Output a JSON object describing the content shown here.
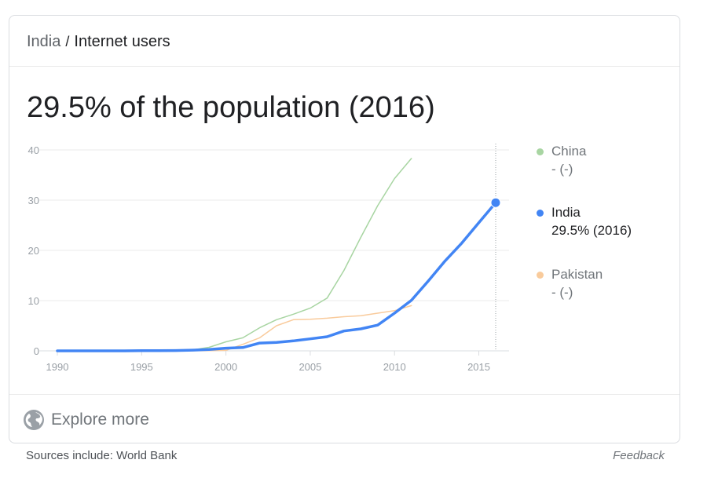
{
  "breadcrumb": {
    "parent": "India",
    "separator": "/",
    "current": "Internet users"
  },
  "headline": "29.5% of the population (2016)",
  "explore_label": "Explore more",
  "footer": {
    "sources": "Sources include: World Bank",
    "feedback": "Feedback"
  },
  "colors": {
    "china": "#a8d5a2",
    "india": "#4285f4",
    "pakistan": "#f9cb9c",
    "grid": "#ebebeb",
    "axis_text": "#9aa0a6"
  },
  "chart_data": {
    "type": "line",
    "title": "29.5% of the population (2016)",
    "xlabel": "",
    "ylabel": "",
    "xlim": [
      1990,
      2016
    ],
    "ylim": [
      0,
      40
    ],
    "x_ticks": [
      1990,
      1995,
      2000,
      2005,
      2010,
      2015
    ],
    "y_ticks": [
      0,
      10,
      20,
      30,
      40
    ],
    "grid": true,
    "legend_position": "right",
    "highlight": {
      "series": "India",
      "x": 2016,
      "y": 29.5
    },
    "series": [
      {
        "name": "China",
        "legend_value": "- (-)",
        "x": [
          1990,
          1991,
          1992,
          1993,
          1994,
          1995,
          1996,
          1997,
          1998,
          1999,
          2000,
          2001,
          2002,
          2003,
          2004,
          2005,
          2006,
          2007,
          2008,
          2009,
          2010,
          2011
        ],
        "values": [
          0,
          0,
          0,
          0,
          0,
          0,
          0,
          0.03,
          0.17,
          0.7,
          1.8,
          2.6,
          4.6,
          6.2,
          7.3,
          8.5,
          10.5,
          16.0,
          22.6,
          28.9,
          34.3,
          38.3
        ]
      },
      {
        "name": "India",
        "legend_value": "29.5% (2016)",
        "x": [
          1990,
          1991,
          1992,
          1993,
          1994,
          1995,
          1996,
          1997,
          1998,
          1999,
          2000,
          2001,
          2002,
          2003,
          2004,
          2005,
          2006,
          2007,
          2008,
          2009,
          2010,
          2011,
          2012,
          2013,
          2014,
          2015,
          2016
        ],
        "values": [
          0,
          0,
          0,
          0,
          0,
          0.03,
          0.05,
          0.07,
          0.14,
          0.27,
          0.53,
          0.66,
          1.54,
          1.69,
          1.98,
          2.39,
          2.81,
          3.95,
          4.38,
          5.12,
          7.5,
          10.07,
          13.9,
          17.9,
          21.5,
          25.5,
          29.5
        ]
      },
      {
        "name": "Pakistan",
        "legend_value": "- (-)",
        "x": [
          1990,
          1991,
          1992,
          1993,
          1994,
          1995,
          1996,
          1997,
          1998,
          1999,
          2000,
          2001,
          2002,
          2003,
          2004,
          2005,
          2006,
          2007,
          2008,
          2009,
          2010,
          2011
        ],
        "values": [
          0,
          0,
          0,
          0,
          0,
          0,
          0,
          0,
          0.01,
          0.04,
          0.1,
          1.3,
          2.6,
          5.0,
          6.2,
          6.3,
          6.5,
          6.8,
          7.0,
          7.5,
          8.0,
          9.0
        ]
      }
    ]
  }
}
